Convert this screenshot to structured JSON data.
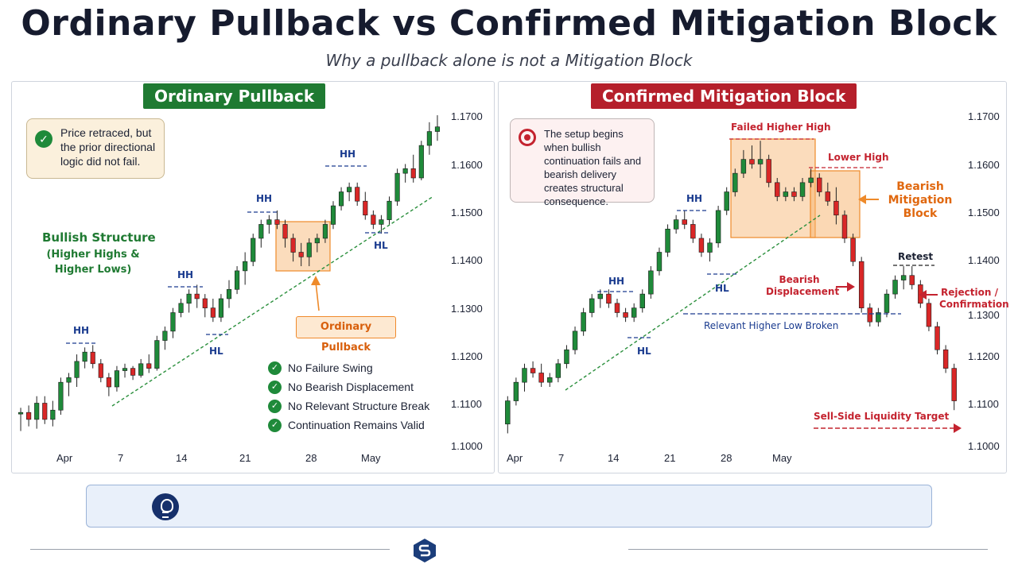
{
  "header": {
    "title": "Ordinary Pullback vs Confirmed Mitigation Block",
    "subtitle": "Why a pullback alone is not a Mitigation Block"
  },
  "left_panel": {
    "badge": "Ordinary Pullback",
    "callout": "Price retraced, but the prior directional logic did not fail.",
    "structure_label": "Bullish Structure",
    "structure_sub": "(Higher Highs & Higher Lows)",
    "pullback_tag": "Ordinary Pullback",
    "swing_labels": [
      "HH",
      "HH",
      "HH",
      "HH",
      "HL",
      "HL"
    ],
    "checklist": [
      "No Failure Swing",
      "No Bearish Displacement",
      "No Relevant Structure Break",
      "Continuation Remains Valid"
    ]
  },
  "right_panel": {
    "badge": "Confirmed Mitigation Block",
    "callout": "The setup begins when bullish continuation fails and bearish delivery creates structural consequence.",
    "annotations": {
      "failed_hh": "Failed Higher High",
      "lower_high": "Lower High",
      "mitigation_block": "Bearish Mitigation Block",
      "displacement": "Bearish Displacement",
      "hl_broken": "Relevant Higher Low Broken",
      "retest": "Retest",
      "rejection": "Rejection / Confirmation",
      "target": "Sell-Side Liquidity Target"
    },
    "swing_labels": [
      "HH",
      "HH",
      "HL",
      "HL"
    ]
  },
  "axis": {
    "price_ticks": [
      "1.1700",
      "1.1600",
      "1.1500",
      "1.1400",
      "1.1300",
      "1.1200",
      "1.1100",
      "1.1000"
    ],
    "left_dates": [
      "Apr",
      "7",
      "14",
      "21",
      "28",
      "May"
    ],
    "right_dates": [
      "Apr",
      "7",
      "14",
      "21",
      "28",
      "May"
    ]
  },
  "colors": {
    "bull": "#1f8a3a",
    "bear": "#d92727",
    "zone": "#f7b26a",
    "trend": "#2a8f3c"
  },
  "chart_data": [
    {
      "type": "candlestick",
      "title": "Ordinary Pullback",
      "ylim": [
        1.1,
        1.171
      ],
      "x": [
        "Apr",
        "7",
        "14",
        "21",
        "28",
        "May"
      ],
      "ohlc": [
        [
          1.1075,
          1.1085,
          1.1035,
          1.1075
        ],
        [
          1.1075,
          1.109,
          1.1045,
          1.106
        ],
        [
          1.106,
          1.111,
          1.104,
          1.1095
        ],
        [
          1.1095,
          1.111,
          1.105,
          1.106
        ],
        [
          1.106,
          1.11,
          1.1045,
          1.108
        ],
        [
          1.108,
          1.115,
          1.107,
          1.114
        ],
        [
          1.114,
          1.116,
          1.111,
          1.115
        ],
        [
          1.115,
          1.12,
          1.113,
          1.1185
        ],
        [
          1.1185,
          1.1215,
          1.117,
          1.1205
        ],
        [
          1.1205,
          1.122,
          1.117,
          1.118
        ],
        [
          1.118,
          1.119,
          1.114,
          1.115
        ],
        [
          1.115,
          1.116,
          1.111,
          1.113
        ],
        [
          1.113,
          1.1175,
          1.112,
          1.1165
        ],
        [
          1.1165,
          1.118,
          1.115,
          1.117
        ],
        [
          1.117,
          1.1175,
          1.1145,
          1.1155
        ],
        [
          1.1155,
          1.119,
          1.115,
          1.118
        ],
        [
          1.118,
          1.12,
          1.116,
          1.117
        ],
        [
          1.117,
          1.124,
          1.1165,
          1.123
        ],
        [
          1.123,
          1.126,
          1.121,
          1.125
        ],
        [
          1.125,
          1.13,
          1.1235,
          1.129
        ],
        [
          1.129,
          1.132,
          1.128,
          1.131
        ],
        [
          1.131,
          1.134,
          1.129,
          1.133
        ],
        [
          1.133,
          1.135,
          1.13,
          1.132
        ],
        [
          1.132,
          1.133,
          1.128,
          1.13
        ],
        [
          1.13,
          1.132,
          1.127,
          1.128
        ],
        [
          1.128,
          1.133,
          1.127,
          1.132
        ],
        [
          1.132,
          1.136,
          1.13,
          1.134
        ],
        [
          1.134,
          1.139,
          1.133,
          1.138
        ],
        [
          1.138,
          1.142,
          1.135,
          1.14
        ],
        [
          1.14,
          1.146,
          1.139,
          1.145
        ],
        [
          1.145,
          1.149,
          1.143,
          1.148
        ],
        [
          1.148,
          1.15,
          1.146,
          1.149
        ],
        [
          1.149,
          1.151,
          1.147,
          1.148
        ],
        [
          1.148,
          1.149,
          1.143,
          1.145
        ],
        [
          1.145,
          1.146,
          1.14,
          1.142
        ],
        [
          1.142,
          1.144,
          1.139,
          1.141
        ],
        [
          1.141,
          1.145,
          1.139,
          1.144
        ],
        [
          1.144,
          1.146,
          1.142,
          1.145
        ],
        [
          1.145,
          1.149,
          1.144,
          1.148
        ],
        [
          1.148,
          1.153,
          1.147,
          1.152
        ],
        [
          1.152,
          1.156,
          1.151,
          1.155
        ],
        [
          1.155,
          1.157,
          1.153,
          1.156
        ],
        [
          1.156,
          1.157,
          1.152,
          1.153
        ],
        [
          1.153,
          1.155,
          1.149,
          1.15
        ],
        [
          1.15,
          1.151,
          1.147,
          1.148
        ],
        [
          1.148,
          1.15,
          1.146,
          1.149
        ],
        [
          1.149,
          1.154,
          1.148,
          1.153
        ],
        [
          1.153,
          1.16,
          1.152,
          1.159
        ],
        [
          1.159,
          1.161,
          1.157,
          1.16
        ],
        [
          1.16,
          1.163,
          1.157,
          1.158
        ],
        [
          1.158,
          1.166,
          1.1575,
          1.165
        ],
        [
          1.165,
          1.17,
          1.163,
          1.168
        ],
        [
          1.168,
          1.1715,
          1.166,
          1.169
        ]
      ]
    },
    {
      "type": "candlestick",
      "title": "Confirmed Mitigation Block",
      "ylim": [
        1.1,
        1.171
      ],
      "x": [
        "Apr",
        "7",
        "14",
        "21",
        "28",
        "May"
      ],
      "ohlc": [
        [
          1.105,
          1.111,
          1.103,
          1.11
        ],
        [
          1.11,
          1.115,
          1.109,
          1.114
        ],
        [
          1.114,
          1.118,
          1.112,
          1.117
        ],
        [
          1.117,
          1.1185,
          1.115,
          1.116
        ],
        [
          1.116,
          1.118,
          1.113,
          1.114
        ],
        [
          1.114,
          1.116,
          1.113,
          1.115
        ],
        [
          1.115,
          1.119,
          1.114,
          1.118
        ],
        [
          1.118,
          1.122,
          1.117,
          1.121
        ],
        [
          1.121,
          1.126,
          1.12,
          1.125
        ],
        [
          1.125,
          1.13,
          1.124,
          1.129
        ],
        [
          1.129,
          1.133,
          1.128,
          1.132
        ],
        [
          1.132,
          1.134,
          1.13,
          1.133
        ],
        [
          1.133,
          1.134,
          1.13,
          1.131
        ],
        [
          1.131,
          1.132,
          1.128,
          1.129
        ],
        [
          1.129,
          1.13,
          1.127,
          1.128
        ],
        [
          1.128,
          1.131,
          1.127,
          1.13
        ],
        [
          1.13,
          1.134,
          1.129,
          1.133
        ],
        [
          1.133,
          1.139,
          1.132,
          1.138
        ],
        [
          1.138,
          1.143,
          1.137,
          1.142
        ],
        [
          1.142,
          1.148,
          1.141,
          1.147
        ],
        [
          1.147,
          1.15,
          1.146,
          1.149
        ],
        [
          1.149,
          1.151,
          1.147,
          1.148
        ],
        [
          1.148,
          1.149,
          1.144,
          1.145
        ],
        [
          1.145,
          1.146,
          1.141,
          1.142
        ],
        [
          1.142,
          1.145,
          1.14,
          1.144
        ],
        [
          1.144,
          1.152,
          1.143,
          1.151
        ],
        [
          1.151,
          1.156,
          1.15,
          1.155
        ],
        [
          1.155,
          1.16,
          1.154,
          1.159
        ],
        [
          1.159,
          1.164,
          1.158,
          1.162
        ],
        [
          1.162,
          1.165,
          1.16,
          1.161
        ],
        [
          1.161,
          1.166,
          1.158,
          1.162
        ],
        [
          1.162,
          1.163,
          1.156,
          1.157
        ],
        [
          1.157,
          1.158,
          1.153,
          1.154
        ],
        [
          1.154,
          1.156,
          1.153,
          1.155
        ],
        [
          1.155,
          1.156,
          1.153,
          1.154
        ],
        [
          1.154,
          1.158,
          1.153,
          1.157
        ],
        [
          1.157,
          1.16,
          1.156,
          1.158
        ],
        [
          1.158,
          1.159,
          1.154,
          1.155
        ],
        [
          1.155,
          1.157,
          1.152,
          1.153
        ],
        [
          1.153,
          1.156,
          1.148,
          1.15
        ],
        [
          1.15,
          1.151,
          1.144,
          1.145
        ],
        [
          1.145,
          1.146,
          1.139,
          1.14
        ],
        [
          1.14,
          1.141,
          1.129,
          1.13
        ],
        [
          1.13,
          1.131,
          1.126,
          1.127
        ],
        [
          1.127,
          1.13,
          1.126,
          1.129
        ],
        [
          1.129,
          1.134,
          1.128,
          1.133
        ],
        [
          1.133,
          1.137,
          1.132,
          1.136
        ],
        [
          1.136,
          1.139,
          1.134,
          1.137
        ],
        [
          1.137,
          1.139,
          1.134,
          1.135
        ],
        [
          1.135,
          1.136,
          1.13,
          1.131
        ],
        [
          1.131,
          1.132,
          1.125,
          1.126
        ],
        [
          1.126,
          1.127,
          1.12,
          1.121
        ],
        [
          1.121,
          1.122,
          1.116,
          1.117
        ],
        [
          1.117,
          1.118,
          1.108,
          1.11
        ]
      ]
    }
  ]
}
